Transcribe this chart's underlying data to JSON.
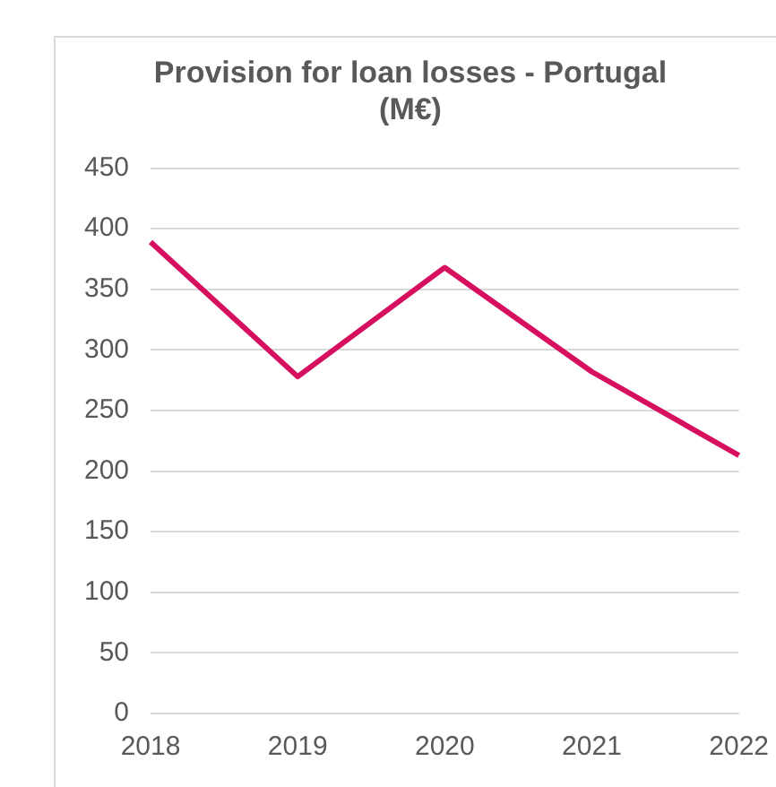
{
  "chart_data": {
    "type": "line",
    "title": "Provision for loan losses - Portugal\n(M€)",
    "categories": [
      "2018",
      "2019",
      "2020",
      "2021",
      "2022"
    ],
    "series": [
      {
        "color": "#d6105f",
        "values": [
          389,
          278,
          368,
          282,
          213
        ]
      }
    ],
    "ylim": [
      0,
      450
    ],
    "yticks": [
      0,
      50,
      100,
      150,
      200,
      250,
      300,
      350,
      400,
      450
    ],
    "grid": "y",
    "legend": false,
    "marker": "none",
    "line_style": "solid"
  }
}
